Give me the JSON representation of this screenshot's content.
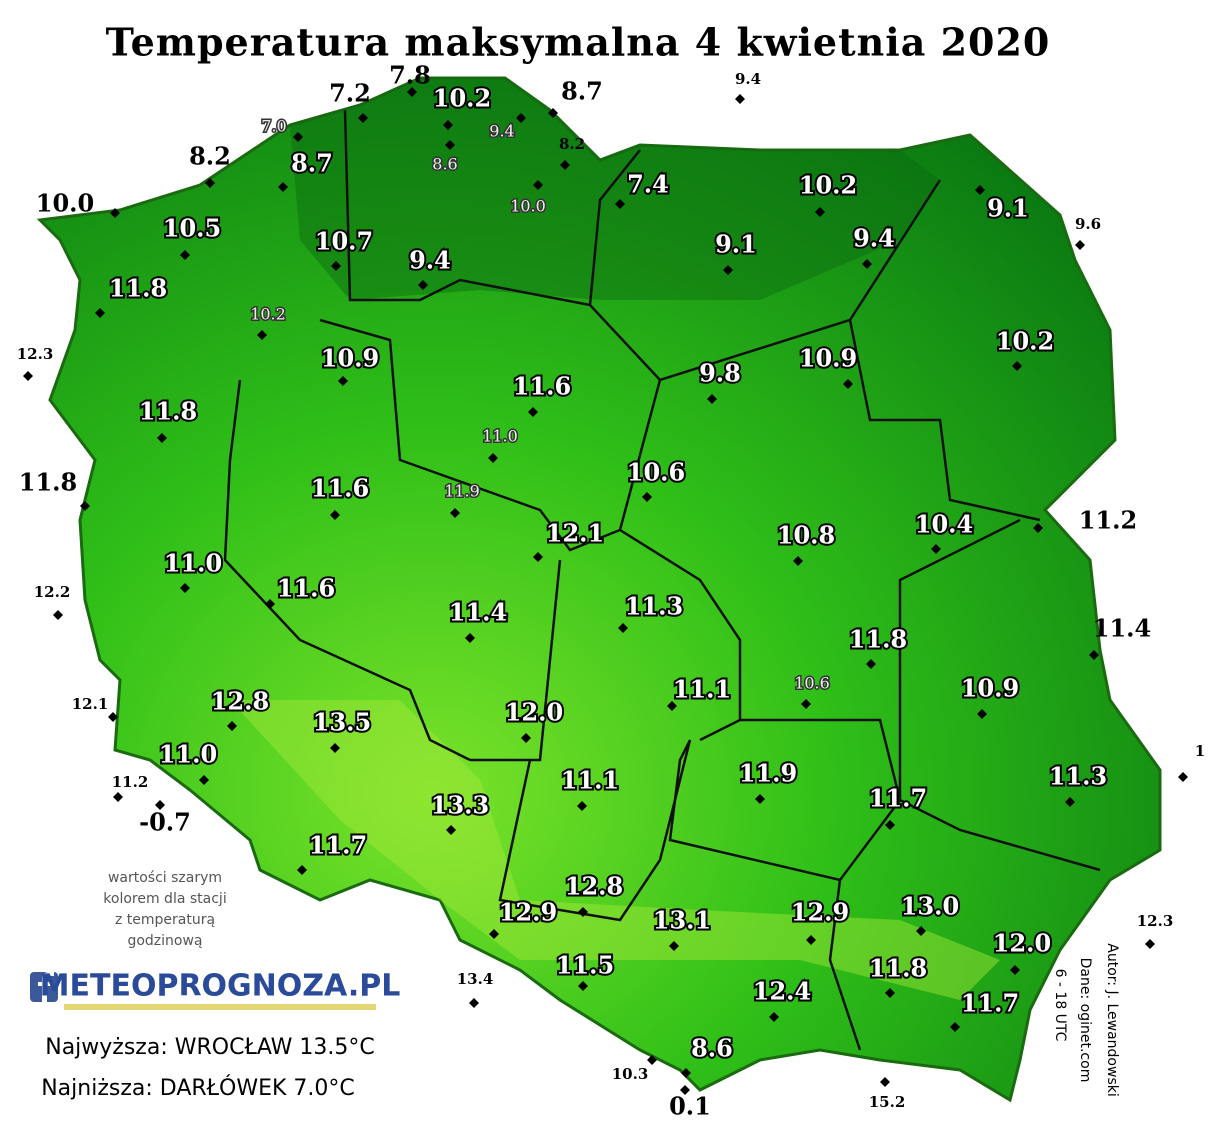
{
  "title": "Temperatura maksymalna 4 kwietnia 2020",
  "stations": [
    "7.2",
    "7.8",
    "10.2",
    "8.7",
    "9.4",
    "7.0",
    "9.4",
    "8.2",
    "8.6",
    "8.2",
    "8.7",
    "10.0",
    "7.4",
    "10.2",
    "9.1",
    "9.6",
    "10.0",
    "10.5",
    "10.7",
    "9.4",
    "9.1",
    "9.4",
    "11.8",
    "10.2",
    "12.3",
    "10.9",
    "10.2",
    "11.6",
    "9.8",
    "10.9",
    "11.8",
    "11.0",
    "11.8",
    "11.6",
    "11.9",
    "10.6",
    "12.1",
    "10.8",
    "10.4",
    "11.2",
    "11.0",
    "12.2",
    "11.6",
    "11.4",
    "11.3",
    "11.4",
    "11.8",
    "12.1",
    "12.8",
    "13.5",
    "12.0",
    "11.1",
    "10.6",
    "10.9",
    "1",
    "11.0",
    "11.2",
    "11.1",
    "11.9",
    "11.7",
    "11.3",
    "-0.7",
    "13.3",
    "11.7",
    "12.8",
    "12.9",
    "13.1",
    "12.9",
    "13.0",
    "12.3",
    "12.0",
    "11.5",
    "11.8",
    "13.4",
    "12.4",
    "11.7",
    "8.6",
    "10.3",
    "0.1",
    "15.2"
  ],
  "note": [
    "wartości szarym",
    "kolorem dla stacji",
    "z temperaturą",
    "godzinową"
  ],
  "logo": "METEOPROGNOZA.PL",
  "highest": "Najwyższa: WROCŁAW 13.5°C",
  "lowest": "Najniższa: DARŁÓWEK 7.0°C",
  "credits": [
    "Autor: J. Lewandowski",
    "Dane: oginet.com",
    "6 - 18 UTC"
  ]
}
